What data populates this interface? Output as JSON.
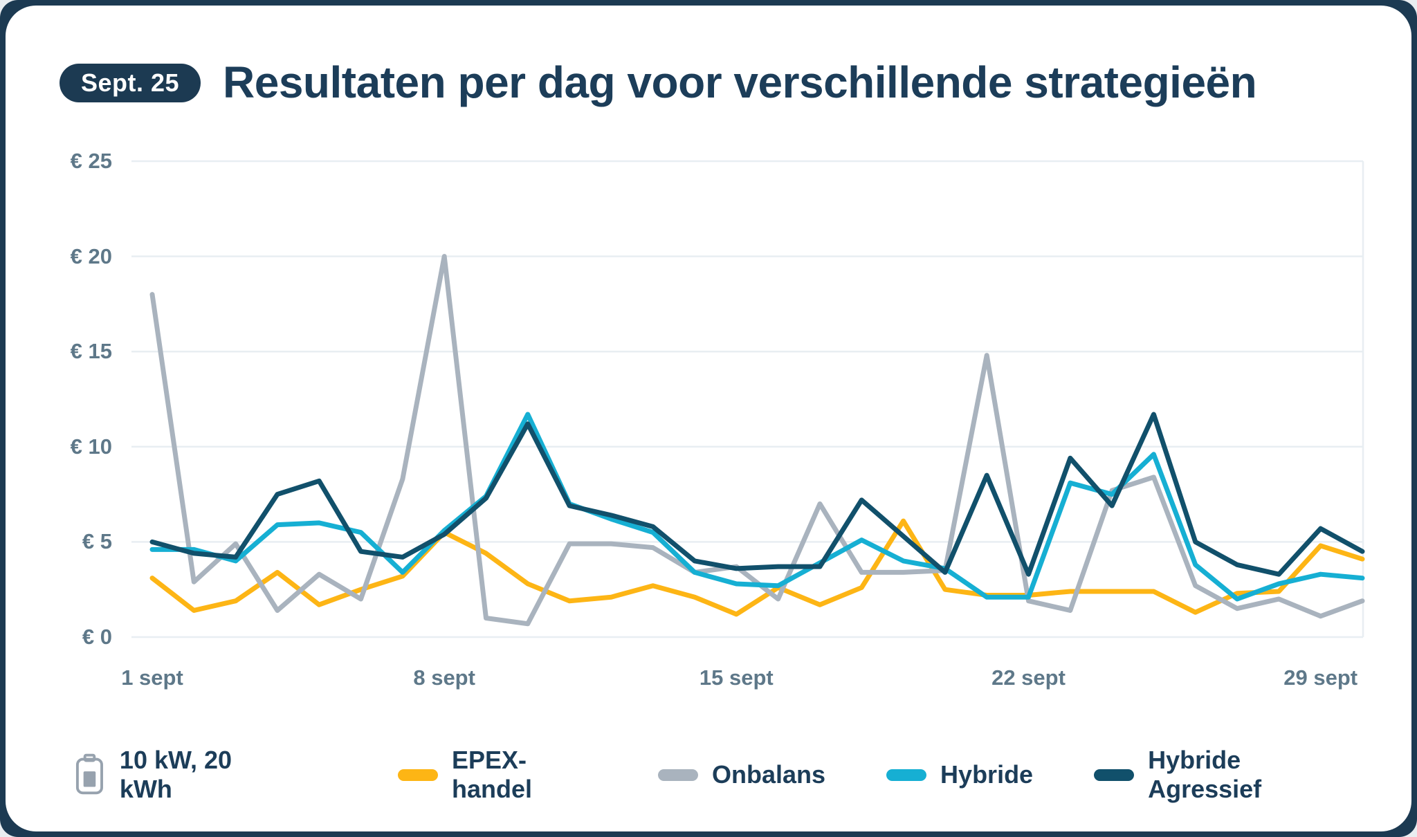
{
  "header": {
    "badge": "Sept. 25",
    "title": "Resultaten per dag voor verschillende strategieën"
  },
  "colors": {
    "accent_navy": "#1C3A52",
    "title_text": "#1C3D59",
    "axis_text": "#5E7889",
    "gridline": "#E8EEF2",
    "card_bg": "#FFFFFF",
    "page_bg": "#E9EDF1"
  },
  "legend": {
    "battery_label": "10 kW, 20 kWh",
    "battery_icon": "battery-icon"
  },
  "chart_data": {
    "type": "line",
    "title": "Resultaten per dag voor verschillende strategieën",
    "xlabel": "",
    "ylabel": "",
    "ylim": [
      0,
      25
    ],
    "y_ticks": [
      "€ 0",
      "€ 5",
      "€ 10",
      "€ 15",
      "€ 20",
      "€ 25"
    ],
    "y_tick_values": [
      0,
      5,
      10,
      15,
      20,
      25
    ],
    "grid": "horizontal",
    "legend_position": "bottom",
    "x_days": 30,
    "x_tick_labels": [
      {
        "label": "1 sept",
        "day": 1
      },
      {
        "label": "8 sept",
        "day": 8
      },
      {
        "label": "15 sept",
        "day": 15
      },
      {
        "label": "22 sept",
        "day": 22
      },
      {
        "label": "29 sept",
        "day": 29
      }
    ],
    "series": [
      {
        "name": "EPEX-handel",
        "color": "#FDB515",
        "values": [
          3.1,
          1.4,
          1.9,
          3.4,
          1.7,
          2.5,
          3.2,
          5.5,
          4.4,
          2.8,
          1.9,
          2.1,
          2.7,
          2.1,
          1.2,
          2.6,
          1.7,
          2.6,
          6.1,
          2.5,
          2.2,
          2.2,
          2.4,
          2.4,
          2.4,
          1.3,
          2.3,
          2.4,
          4.8,
          4.1
        ]
      },
      {
        "name": "Onbalans",
        "color": "#A9B3BE",
        "values": [
          18.0,
          2.9,
          4.9,
          1.4,
          3.3,
          2.0,
          8.3,
          20.0,
          1.0,
          0.7,
          4.9,
          4.9,
          4.7,
          3.4,
          3.7,
          2.0,
          7.0,
          3.4,
          3.4,
          3.5,
          14.8,
          1.9,
          1.4,
          7.7,
          8.4,
          2.7,
          1.5,
          2.0,
          1.1,
          1.9
        ]
      },
      {
        "name": "Hybride",
        "color": "#16AFD3",
        "values": [
          4.6,
          4.6,
          4.0,
          5.9,
          6.0,
          5.5,
          3.4,
          5.6,
          7.4,
          11.7,
          7.0,
          6.2,
          5.5,
          3.4,
          2.8,
          2.7,
          3.9,
          5.1,
          4.0,
          3.6,
          2.1,
          2.1,
          8.1,
          7.5,
          9.6,
          3.8,
          2.0,
          2.8,
          3.3,
          3.1
        ]
      },
      {
        "name": "Hybride Agressief",
        "color": "#11506B",
        "values": [
          5.0,
          4.4,
          4.2,
          7.5,
          8.2,
          4.5,
          4.2,
          5.4,
          7.3,
          11.2,
          6.9,
          6.4,
          5.8,
          4.0,
          3.6,
          3.7,
          3.7,
          7.2,
          5.3,
          3.4,
          8.5,
          3.3,
          9.4,
          6.9,
          11.7,
          5.0,
          3.8,
          3.3,
          5.7,
          4.5
        ]
      }
    ]
  }
}
